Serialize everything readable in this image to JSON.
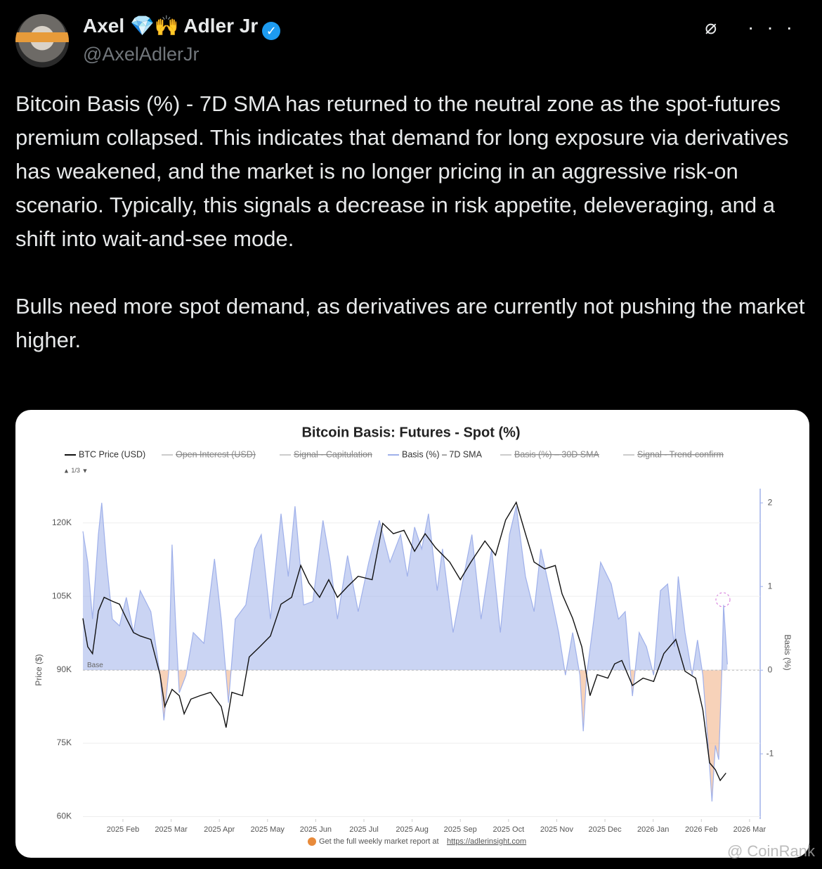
{
  "tweet": {
    "name_first": "Axel",
    "name_emoji": "💎🙌",
    "name_last": "Adler Jr",
    "handle": "@AxelAdlerJr",
    "paragraphs": [
      "Bitcoin Basis (%) - 7D SMA has returned to the neutral zone as the spot-futures premium collapsed. This indicates that demand for long exposure via derivatives has weakened, and the market is no longer pricing in an aggressive risk-on scenario. Typically, this signals a decrease in risk appetite, deleveraging, and a shift into wait-and-see mode.",
      "Bulls need more spot demand, as derivatives are currently not pushing the market higher."
    ]
  },
  "chart_data": {
    "type": "line",
    "title": "Bitcoin Basis: Futures - Spot (%)",
    "y_label": "Price ($)",
    "y2_label": "Basis (%)",
    "base_label": "Base",
    "legend_page": "1/3",
    "hidden_series": [
      "Open Interest (USD)",
      "Signal - Capitulation",
      "Basis (%) – 30D SMA",
      "Signal - Trend-confirm"
    ],
    "footer": "Get the full weekly market report at",
    "footer_link": "https://adlerinsight.com",
    "grid": true,
    "xlim": [
      0.17,
      14.22
    ],
    "xticks": [
      {
        "value": 1,
        "label": "2025 Feb"
      },
      {
        "value": 2,
        "label": "2025 Mar"
      },
      {
        "value": 3,
        "label": "2025 Apr"
      },
      {
        "value": 4,
        "label": "2025 May"
      },
      {
        "value": 5,
        "label": "2025 Jun"
      },
      {
        "value": 6,
        "label": "2025 Jul"
      },
      {
        "value": 7,
        "label": "2025 Aug"
      },
      {
        "value": 8,
        "label": "2025 Sep"
      },
      {
        "value": 9,
        "label": "2025 Oct"
      },
      {
        "value": 10,
        "label": "2025 Nov"
      },
      {
        "value": 11,
        "label": "2025 Dec"
      },
      {
        "value": 12,
        "label": "2026 Jan"
      },
      {
        "value": 13,
        "label": "2026 Feb"
      },
      {
        "value": 14,
        "label": "2026 Mar"
      }
    ],
    "ylim": [
      59500,
      127000
    ],
    "yticks": [
      {
        "value": 60000,
        "label": "60K"
      },
      {
        "value": 75000,
        "label": "75K"
      },
      {
        "value": 90000,
        "label": "90K"
      },
      {
        "value": 105000,
        "label": "105K"
      },
      {
        "value": 120000,
        "label": "120K"
      }
    ],
    "y2lim": [
      -1.78,
      2.17
    ],
    "y2ticks": [
      -1,
      0,
      1,
      2
    ],
    "series": [
      {
        "name": "BTC Price (USD)",
        "color": "#111111",
        "x": [
          0.17,
          0.27,
          0.37,
          0.49,
          0.61,
          0.78,
          0.93,
          1.07,
          1.22,
          1.36,
          1.58,
          1.77,
          1.87,
          2.02,
          2.17,
          2.27,
          2.41,
          2.6,
          2.82,
          3.04,
          3.14,
          3.26,
          3.48,
          3.62,
          3.84,
          4.06,
          4.28,
          4.5,
          4.69,
          4.86,
          5.08,
          5.27,
          5.45,
          5.66,
          5.88,
          6.17,
          6.39,
          6.61,
          6.83,
          7.05,
          7.27,
          7.49,
          7.78,
          8.0,
          8.22,
          8.51,
          8.73,
          8.94,
          9.16,
          9.35,
          9.53,
          9.75,
          9.97,
          10.11,
          10.33,
          10.52,
          10.69,
          10.84,
          11.06,
          11.2,
          11.35,
          11.57,
          11.79,
          12.01,
          12.22,
          12.47,
          12.66,
          12.88,
          13.03,
          13.17,
          13.29,
          13.39,
          13.51
        ],
        "values": [
          100500,
          94700,
          93300,
          102000,
          104800,
          104000,
          103400,
          100500,
          97600,
          96900,
          96200,
          89000,
          82500,
          86000,
          84700,
          81000,
          84000,
          84700,
          85400,
          82500,
          78200,
          85400,
          84700,
          92600,
          94700,
          96900,
          103400,
          104800,
          111300,
          107700,
          104800,
          108400,
          104800,
          107000,
          109100,
          108400,
          119900,
          117800,
          118500,
          114200,
          117800,
          114900,
          112000,
          108400,
          112000,
          116300,
          113400,
          120600,
          124200,
          117800,
          112000,
          110600,
          111300,
          105500,
          100500,
          94700,
          84700,
          89000,
          88300,
          91200,
          91900,
          86800,
          88300,
          87600,
          93300,
          96200,
          89700,
          88300,
          81800,
          71000,
          69600,
          67400,
          68900
        ]
      },
      {
        "name": "Basis (%) – 7D SMA",
        "color": "#9fb0ea",
        "axis": "y2",
        "x": [
          0.17,
          0.27,
          0.37,
          0.49,
          0.56,
          0.66,
          0.78,
          0.93,
          1.07,
          1.22,
          1.36,
          1.58,
          1.77,
          1.85,
          1.95,
          2.02,
          2.09,
          2.17,
          2.31,
          2.46,
          2.68,
          2.9,
          3.04,
          3.19,
          3.33,
          3.55,
          3.73,
          3.87,
          4.06,
          4.28,
          4.43,
          4.57,
          4.75,
          4.94,
          5.15,
          5.3,
          5.45,
          5.66,
          5.88,
          6.1,
          6.32,
          6.54,
          6.76,
          6.9,
          7.05,
          7.2,
          7.34,
          7.52,
          7.63,
          7.85,
          8.07,
          8.24,
          8.43,
          8.65,
          8.83,
          9.02,
          9.16,
          9.35,
          9.53,
          9.67,
          9.89,
          10.04,
          10.18,
          10.33,
          10.48,
          10.55,
          10.62,
          10.77,
          10.91,
          11.13,
          11.28,
          11.42,
          11.57,
          11.71,
          11.86,
          12.01,
          12.15,
          12.3,
          12.44,
          12.52,
          12.66,
          12.81,
          12.92,
          13.03,
          13.14,
          13.22,
          13.29,
          13.36,
          13.43,
          13.46,
          13.54
        ],
        "values": [
          1.66,
          1.29,
          0.61,
          1.62,
          2.0,
          1.29,
          0.61,
          0.53,
          0.87,
          0.45,
          0.95,
          0.7,
          -0.06,
          -0.6,
          -0.02,
          1.5,
          0.61,
          -0.27,
          -0.06,
          0.45,
          0.32,
          1.33,
          0.61,
          -0.39,
          0.61,
          0.78,
          1.45,
          1.62,
          0.61,
          1.87,
          1.12,
          1.96,
          0.78,
          0.82,
          1.79,
          1.29,
          0.61,
          1.37,
          0.7,
          1.29,
          1.79,
          1.29,
          1.62,
          1.12,
          1.71,
          1.45,
          1.87,
          0.95,
          1.45,
          0.45,
          1.12,
          1.62,
          0.61,
          1.45,
          0.45,
          1.62,
          1.96,
          1.12,
          0.7,
          1.45,
          0.87,
          0.45,
          -0.06,
          0.45,
          -0.06,
          -0.73,
          -0.06,
          0.61,
          1.29,
          1.03,
          0.61,
          0.7,
          -0.31,
          0.45,
          0.28,
          -0.06,
          0.95,
          1.03,
          0.28,
          1.12,
          0.45,
          -0.06,
          0.36,
          -0.06,
          -0.9,
          -1.57,
          -0.9,
          -1.07,
          0.07,
          0.78,
          0.07
        ]
      }
    ]
  },
  "watermark": "@ CoinRank"
}
